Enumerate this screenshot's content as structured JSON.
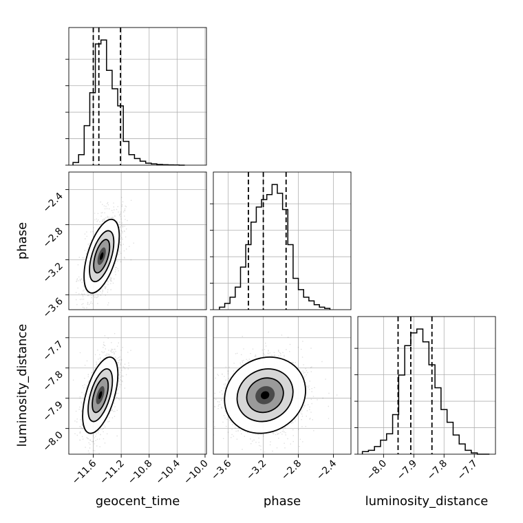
{
  "chart_data": {
    "type": "corner",
    "parameters": [
      "geocent_time",
      "phase",
      "luminosity_distance"
    ],
    "colors": {
      "line": "#000000",
      "grid": "#b0b0b0",
      "scatter": "#000000",
      "background": "#ffffff"
    },
    "axes": {
      "geocent_time": {
        "label": "geocent_time",
        "range": [
          -11.95,
          -9.98
        ],
        "ticks": [
          -11.6,
          -11.2,
          -10.8,
          -10.4,
          -10.0
        ],
        "tick_labels": [
          "−11.6",
          "−11.2",
          "−10.8",
          "−10.4",
          "−10.0"
        ]
      },
      "phase": {
        "label": "phase",
        "range": [
          -3.77,
          -2.2
        ],
        "ticks": [
          -3.6,
          -3.2,
          -2.8,
          -2.4
        ],
        "tick_labels": [
          "−3.6",
          "−3.2",
          "−2.8",
          "−2.4"
        ]
      },
      "luminosity_distance": {
        "label": "luminosity_distance",
        "range": [
          -8.085,
          -7.63
        ],
        "ticks": [
          -8.0,
          -7.9,
          -7.8,
          -7.7
        ],
        "tick_labels": [
          "−8.0",
          "−7.9",
          "−7.8",
          "−7.7"
        ]
      }
    },
    "marginals": [
      {
        "parameter": "geocent_time",
        "quantiles": [
          -11.6,
          -11.52,
          -11.21
        ],
        "bins": [
          -11.89,
          -11.81,
          -11.73,
          -11.65,
          -11.57,
          -11.49,
          -11.41,
          -11.33,
          -11.25,
          -11.17,
          -11.09,
          -11.01,
          -10.93,
          -10.85,
          -10.77,
          -10.69,
          -10.61,
          -10.53,
          -10.45,
          -10.37,
          -10.29
        ],
        "counts": [
          2,
          8,
          30,
          55,
          92,
          95,
          72,
          58,
          45,
          18,
          8,
          5,
          3,
          1.5,
          1,
          0.5,
          0.3,
          0.2,
          0.1,
          0
        ]
      },
      {
        "parameter": "phase",
        "quantiles": [
          -3.37,
          -3.2,
          -2.94
        ],
        "bins": [
          -3.7,
          -3.64,
          -3.58,
          -3.52,
          -3.46,
          -3.4,
          -3.34,
          -3.28,
          -3.22,
          -3.16,
          -3.1,
          -3.04,
          -2.98,
          -2.92,
          -2.86,
          -2.8,
          -2.74,
          -2.68,
          -2.62,
          -2.56,
          -2.5,
          -2.44
        ],
        "counts": [
          2,
          5,
          10,
          18,
          34,
          52,
          70,
          82,
          88,
          92,
          100,
          93,
          80,
          52,
          25,
          16,
          10,
          7,
          4,
          2,
          1
        ]
      },
      {
        "parameter": "luminosity_distance",
        "quantiles": [
          -7.952,
          -7.91,
          -7.84
        ],
        "bins": [
          -8.07,
          -8.05,
          -8.03,
          -8.01,
          -7.99,
          -7.97,
          -7.95,
          -7.93,
          -7.91,
          -7.89,
          -7.87,
          -7.85,
          -7.83,
          -7.81,
          -7.79,
          -7.77,
          -7.75,
          -7.73,
          -7.71,
          -7.69,
          -7.67,
          -7.65
        ],
        "counts": [
          2,
          3,
          6,
          11,
          16,
          31,
          62,
          85,
          95,
          98,
          88,
          70,
          52,
          35,
          25,
          15,
          8,
          3,
          1,
          0,
          0
        ]
      }
    ],
    "joints": [
      {
        "x": "geocent_time",
        "y": "phase",
        "center": [
          -11.48,
          -3.16
        ],
        "sigma": [
          0.12,
          0.2
        ],
        "rho": 0.55
      },
      {
        "x": "geocent_time",
        "y": "luminosity_distance",
        "center": [
          -11.5,
          -7.89
        ],
        "sigma": [
          0.12,
          0.06
        ],
        "rho": 0.55
      },
      {
        "x": "phase",
        "y": "luminosity_distance",
        "center": [
          -3.18,
          -7.89
        ],
        "sigma": [
          0.22,
          0.06
        ],
        "rho": 0.12
      }
    ]
  }
}
